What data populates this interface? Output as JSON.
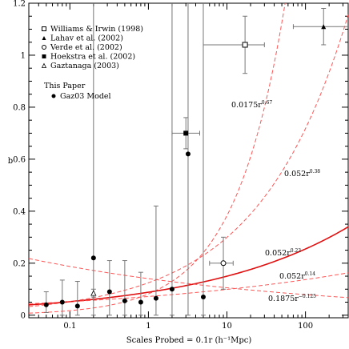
{
  "chart_data": {
    "type": "scatter",
    "title": "",
    "xlabel": "Scales Probed = 0.1r (h⁻¹Mpc)",
    "ylabel": "b",
    "xscale": "log",
    "xlim": [
      0.03,
      350
    ],
    "ylim": [
      -0.01,
      1.2
    ],
    "x_ticks": [
      0.1,
      1,
      10,
      100
    ],
    "x_tick_labels": [
      "0.1",
      "1",
      "10",
      "100"
    ],
    "y_ticks": [
      0,
      0.2,
      0.4,
      0.6,
      0.8,
      1,
      1.2
    ],
    "y_tick_labels": [
      "0",
      "0.2",
      "0.4",
      "0.6",
      "0.8",
      "1",
      "1.2"
    ],
    "legend": {
      "placement": "top-left",
      "heading": "This Paper",
      "entries": [
        {
          "label": "Williams & Irwin (1998)",
          "marker": "open-square"
        },
        {
          "label": "Lahav et al. (2002)",
          "marker": "filled-triangle"
        },
        {
          "label": "Verde et al. (2002)",
          "marker": "open-circle"
        },
        {
          "label": "Hoekstra et al. (2002)",
          "marker": "filled-square"
        },
        {
          "label": "Gaztanaga (2003)",
          "marker": "open-triangle"
        }
      ],
      "paper_entries": [
        {
          "label": "Gaz03 Model",
          "marker": "filled-circle"
        }
      ]
    },
    "series": [
      {
        "name": "Gaz03 Model",
        "marker": "filled-circle",
        "color": "#000000",
        "points": [
          {
            "x": 0.05,
            "y": 0.04,
            "ylo": 0.01,
            "yhi": 0.09
          },
          {
            "x": 0.08,
            "y": 0.05,
            "ylo": 0.0,
            "yhi": 0.135
          },
          {
            "x": 0.125,
            "y": 0.035,
            "ylo": 0.0,
            "yhi": 0.13
          },
          {
            "x": 0.2,
            "y": 0.22,
            "ylo": 0.0,
            "yhi": 1.22
          },
          {
            "x": 0.32,
            "y": 0.09,
            "ylo": 0.0,
            "yhi": 0.21
          },
          {
            "x": 0.5,
            "y": 0.055,
            "ylo": 0.0,
            "yhi": 0.21
          },
          {
            "x": 0.8,
            "y": 0.05,
            "ylo": 0.0,
            "yhi": 0.165
          },
          {
            "x": 1.25,
            "y": 0.065,
            "ylo": 0.0,
            "yhi": 0.42
          },
          {
            "x": 2.0,
            "y": 0.1,
            "ylo": 0.0,
            "yhi": 1.22
          },
          {
            "x": 3.2,
            "y": 0.62,
            "ylo": 0.0,
            "yhi": 1.22
          },
          {
            "x": 5.0,
            "y": 0.07,
            "ylo": 0.0,
            "yhi": 1.22
          }
        ]
      },
      {
        "name": "Williams & Irwin (1998)",
        "marker": "open-square",
        "color": "#000000",
        "points": [
          {
            "x": 17,
            "y": 1.04,
            "ylo": 0.93,
            "yhi": 1.15,
            "xlo": 5,
            "xhi": 30
          }
        ]
      },
      {
        "name": "Lahav et al. (2002)",
        "marker": "filled-triangle",
        "color": "#000000",
        "points": [
          {
            "x": 170,
            "y": 1.11,
            "ylo": 1.04,
            "yhi": 1.18,
            "xlo": 70,
            "xhi": 350
          }
        ]
      },
      {
        "name": "Verde et al. (2002)",
        "marker": "open-circle",
        "color": "#000000",
        "points": [
          {
            "x": 9.0,
            "y": 0.2,
            "ylo": 0.1,
            "yhi": 0.3,
            "xlo": 6,
            "xhi": 12
          }
        ]
      },
      {
        "name": "Hoekstra et al. (2002)",
        "marker": "filled-square",
        "color": "#000000",
        "points": [
          {
            "x": 3.0,
            "y": 0.7,
            "ylo": 0.64,
            "yhi": 0.76,
            "xlo": 2.0,
            "xhi": 4.5
          }
        ]
      },
      {
        "name": "Gaztanaga (2003)",
        "marker": "open-triangle",
        "color": "#000000",
        "points": [
          {
            "x": 0.2,
            "y": 0.085,
            "ylo": 0.07,
            "yhi": 0.1
          }
        ]
      }
    ],
    "curves": [
      {
        "label": "0.0175r",
        "exponent_label": "0.67",
        "amplitude": 0.0175,
        "exponent": 0.67,
        "style": "dashed",
        "color": "#ff5555",
        "width": 1
      },
      {
        "label": "0.052r",
        "exponent_label": "0.38",
        "amplitude": 0.052,
        "exponent": 0.38,
        "style": "dashed",
        "color": "#ff5555",
        "width": 1
      },
      {
        "label": "0.052r",
        "exponent_label": "0.23",
        "amplitude": 0.052,
        "exponent": 0.23,
        "style": "solid",
        "color": "#e01010",
        "width": 1.6
      },
      {
        "label": "0.052r",
        "exponent_label": "0.14",
        "amplitude": 0.052,
        "exponent": 0.14,
        "style": "dashed",
        "color": "#ff5555",
        "width": 1
      },
      {
        "label": "0.1875r",
        "exponent_label": "−0.125",
        "amplitude": 0.1875,
        "exponent": -0.125,
        "style": "dashed",
        "color": "#ff5555",
        "width": 1
      }
    ]
  }
}
